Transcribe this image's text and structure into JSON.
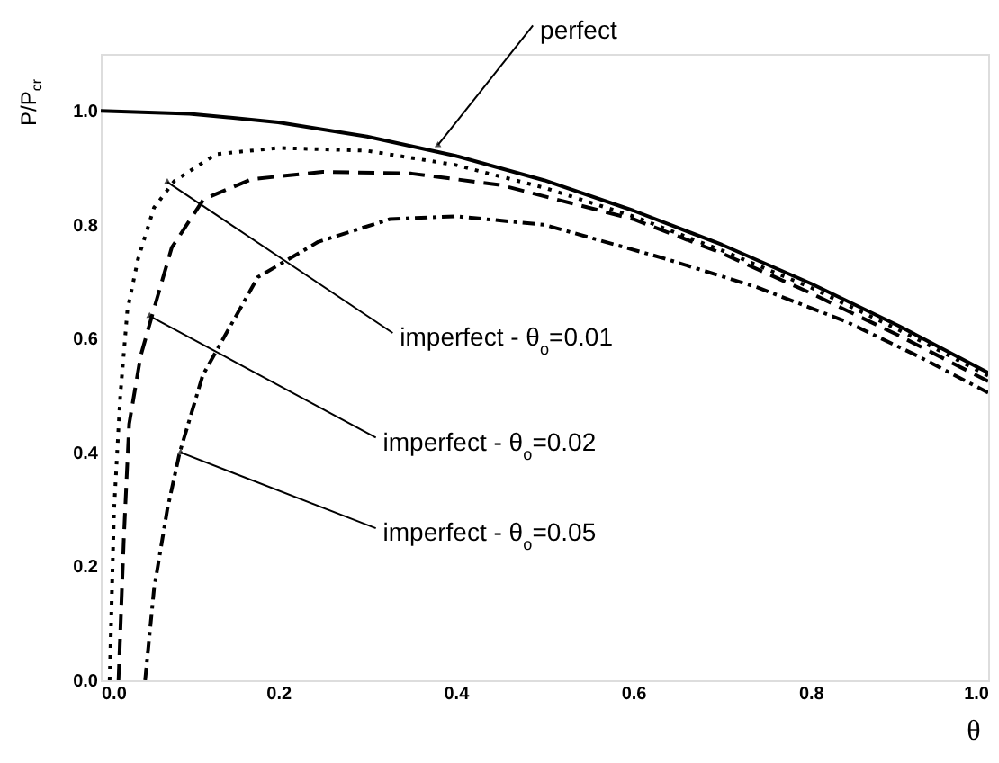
{
  "chart_data": {
    "type": "line",
    "xlabel": "θ",
    "ylabel": "P/P$_{cr}$",
    "xlim": [
      0,
      1.0
    ],
    "ylim": [
      0,
      1.1
    ],
    "xticks": [
      {
        "value": 0,
        "label": "0.0"
      },
      {
        "value": 0.2,
        "label": "0.2"
      },
      {
        "value": 0.4,
        "label": "0.4"
      },
      {
        "value": 0.6,
        "label": "0.6"
      },
      {
        "value": 0.8,
        "label": "0.8"
      },
      {
        "value": 1.0,
        "label": "1.0"
      }
    ],
    "yticks": [
      {
        "value": 0,
        "label": "0.0"
      },
      {
        "value": 0.2,
        "label": "0.2"
      },
      {
        "value": 0.4,
        "label": "0.4"
      },
      {
        "value": 0.6,
        "label": "0.6"
      },
      {
        "value": 0.8,
        "label": "0.8"
      },
      {
        "value": 1.0,
        "label": "1.0"
      }
    ],
    "grid": false,
    "series": [
      {
        "color": "#000000",
        "line_style": "solid",
        "x": [
          0,
          0.1,
          0.2,
          0.3,
          0.4,
          0.5,
          0.6,
          0.7,
          0.8,
          0.9,
          1.0
        ],
        "values": [
          1.0,
          0.995,
          0.98,
          0.955,
          0.921,
          0.878,
          0.825,
          0.765,
          0.697,
          0.622,
          0.54
        ]
      },
      {
        "color": "#000000",
        "line_style": "dotted",
        "x": [
          0.01,
          0.015,
          0.022,
          0.03,
          0.042,
          0.06,
          0.083,
          0.13,
          0.2,
          0.3,
          0.4,
          0.5,
          0.6,
          0.7,
          0.8,
          0.9,
          1.0
        ],
        "values": [
          0,
          0.3,
          0.5,
          0.65,
          0.74,
          0.83,
          0.877,
          0.924,
          0.935,
          0.93,
          0.905,
          0.865,
          0.815,
          0.755,
          0.69,
          0.615,
          0.535
        ]
      },
      {
        "color": "#000000",
        "line_style": "dashed",
        "x": [
          0.02,
          0.026,
          0.032,
          0.045,
          0.059,
          0.08,
          0.116,
          0.17,
          0.25,
          0.35,
          0.45,
          0.6,
          0.7,
          0.8,
          0.9,
          1.0
        ],
        "values": [
          0,
          0.25,
          0.45,
          0.57,
          0.647,
          0.76,
          0.845,
          0.88,
          0.893,
          0.89,
          0.87,
          0.81,
          0.75,
          0.68,
          0.605,
          0.525
        ]
      },
      {
        "color": "#000000",
        "line_style": "dashdot",
        "x": [
          0.05,
          0.06,
          0.075,
          0.089,
          0.115,
          0.177,
          0.245,
          0.326,
          0.4,
          0.5,
          0.637,
          0.74,
          0.84,
          0.92,
          1.0
        ],
        "values": [
          0,
          0.16,
          0.3,
          0.4,
          0.536,
          0.708,
          0.77,
          0.81,
          0.815,
          0.8,
          0.74,
          0.69,
          0.63,
          0.57,
          0.505
        ]
      }
    ],
    "annotations": [
      {
        "text": "perfect",
        "x": 0.38,
        "y": 0.94
      },
      {
        "text": "imperfect - θ$_{o}$=0.01",
        "x": 0.075,
        "y": 0.875
      },
      {
        "text": "imperfect - θ$_{o}$=0.02",
        "x": 0.055,
        "y": 0.64
      },
      {
        "text": "imperfect - θ$_{o}$=0.05",
        "x": 0.09,
        "y": 0.4
      }
    ]
  }
}
